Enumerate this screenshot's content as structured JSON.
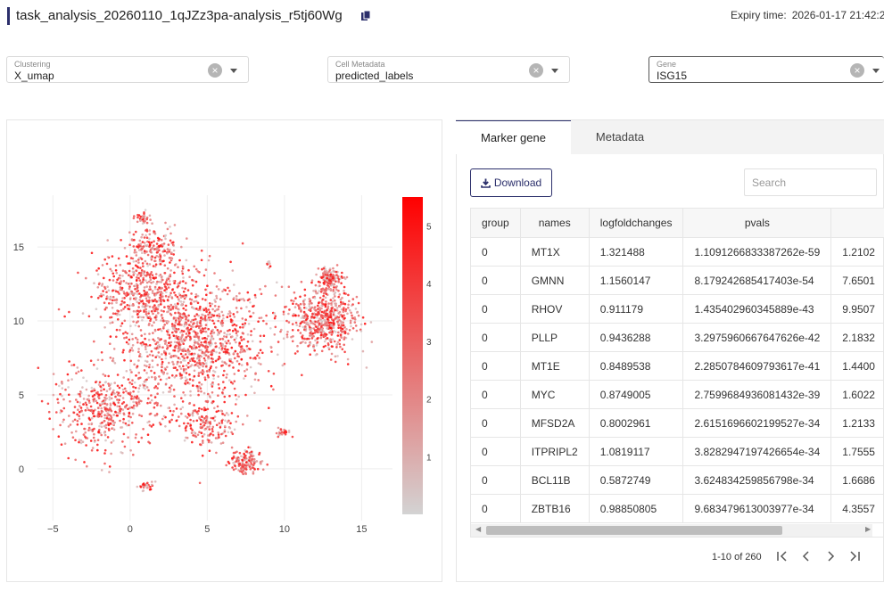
{
  "header": {
    "title": "task_analysis_20260110_1qJZz3pa-analysis_r5tj60Wg",
    "expiry_label": "Expiry time:",
    "expiry_value": "2026-01-17 21:42:2"
  },
  "selects": [
    {
      "label": "Clustering",
      "value": "X_umap"
    },
    {
      "label": "Cell Metadata",
      "value": "predicted_labels"
    },
    {
      "label": "Gene",
      "value": "ISG15"
    }
  ],
  "plot": {
    "x_ticks": [
      "−5",
      "0",
      "5",
      "10",
      "15"
    ],
    "y_ticks": [
      "15",
      "10",
      "5",
      "0"
    ],
    "colorbar_ticks": [
      "5",
      "4",
      "3",
      "2",
      "1"
    ],
    "colorscale": [
      "#d3d3d3",
      "#ff0000"
    ]
  },
  "chart_data": {
    "type": "scatter",
    "xlim": [
      -6,
      17
    ],
    "ylim": [
      -3.5,
      18.5
    ],
    "color_range": [
      0,
      5.5
    ],
    "clusters": [
      {
        "cx": 4,
        "cy": 8.5,
        "sx": 4.5,
        "sy": 3.6,
        "n": 1100
      },
      {
        "cx": 1,
        "cy": 12,
        "sx": 3,
        "sy": 2.2,
        "n": 450
      },
      {
        "cx": -1.5,
        "cy": 4,
        "sx": 3,
        "sy": 2.5,
        "n": 450
      },
      {
        "cx": 1.5,
        "cy": 15,
        "sx": 1.6,
        "sy": 1.2,
        "n": 160
      },
      {
        "cx": 12.5,
        "cy": 10,
        "sx": 2,
        "sy": 1.9,
        "n": 560
      },
      {
        "cx": 13,
        "cy": 12.8,
        "sx": 0.7,
        "sy": 0.8,
        "n": 140
      },
      {
        "cx": 7.5,
        "cy": 0.5,
        "sx": 0.9,
        "sy": 0.7,
        "n": 130
      },
      {
        "cx": 5,
        "cy": 3,
        "sx": 1.5,
        "sy": 1.5,
        "n": 160
      },
      {
        "cx": 10,
        "cy": 2.5,
        "sx": 0.4,
        "sy": 0.3,
        "n": 25
      },
      {
        "cx": 1.1,
        "cy": -1.2,
        "sx": 0.4,
        "sy": 0.3,
        "n": 30
      },
      {
        "cx": 9,
        "cy": 13.8,
        "sx": 0.15,
        "sy": 0.3,
        "n": 8
      },
      {
        "cx": 7,
        "cy": 11.5,
        "sx": 0.4,
        "sy": 0.15,
        "n": 8
      },
      {
        "cx": 0.8,
        "cy": 17,
        "sx": 0.5,
        "sy": 0.3,
        "n": 30
      }
    ]
  },
  "tabs": [
    {
      "label": "Marker gene",
      "active": true
    },
    {
      "label": "Metadata",
      "active": false
    }
  ],
  "toolbar": {
    "download_label": "Download",
    "search_placeholder": "Search"
  },
  "table": {
    "columns": [
      "group",
      "names",
      "logfoldchanges",
      "pvals",
      ""
    ],
    "rows": [
      [
        "0",
        "MT1X",
        "1.321488",
        "1.1091266833387262e-59",
        "1.2102"
      ],
      [
        "0",
        "GMNN",
        "1.1560147",
        "8.179242685417403e-54",
        "7.6501"
      ],
      [
        "0",
        "RHOV",
        "0.911179",
        "1.435402960345889e-43",
        "9.9507"
      ],
      [
        "0",
        "PLLP",
        "0.9436288",
        "3.2975960667647626e-42",
        "2.1832"
      ],
      [
        "0",
        "MT1E",
        "0.8489538",
        "2.2850784609793617e-41",
        "1.4400"
      ],
      [
        "0",
        "MYC",
        "0.8749005",
        "2.7599684936081432e-39",
        "1.6022"
      ],
      [
        "0",
        "MFSD2A",
        "0.8002961",
        "2.6151696602199527e-34",
        "1.2133"
      ],
      [
        "0",
        "ITPRIPL2",
        "1.0819117",
        "3.8282947197426654e-34",
        "1.7555"
      ],
      [
        "0",
        "BCL11B",
        "0.5872749",
        "3.624834259856798e-34",
        "1.6686"
      ],
      [
        "0",
        "ZBTB16",
        "0.98850805",
        "9.683479613003977e-34",
        "4.3557"
      ]
    ]
  },
  "pagination": {
    "text": "1-10 of 260"
  }
}
